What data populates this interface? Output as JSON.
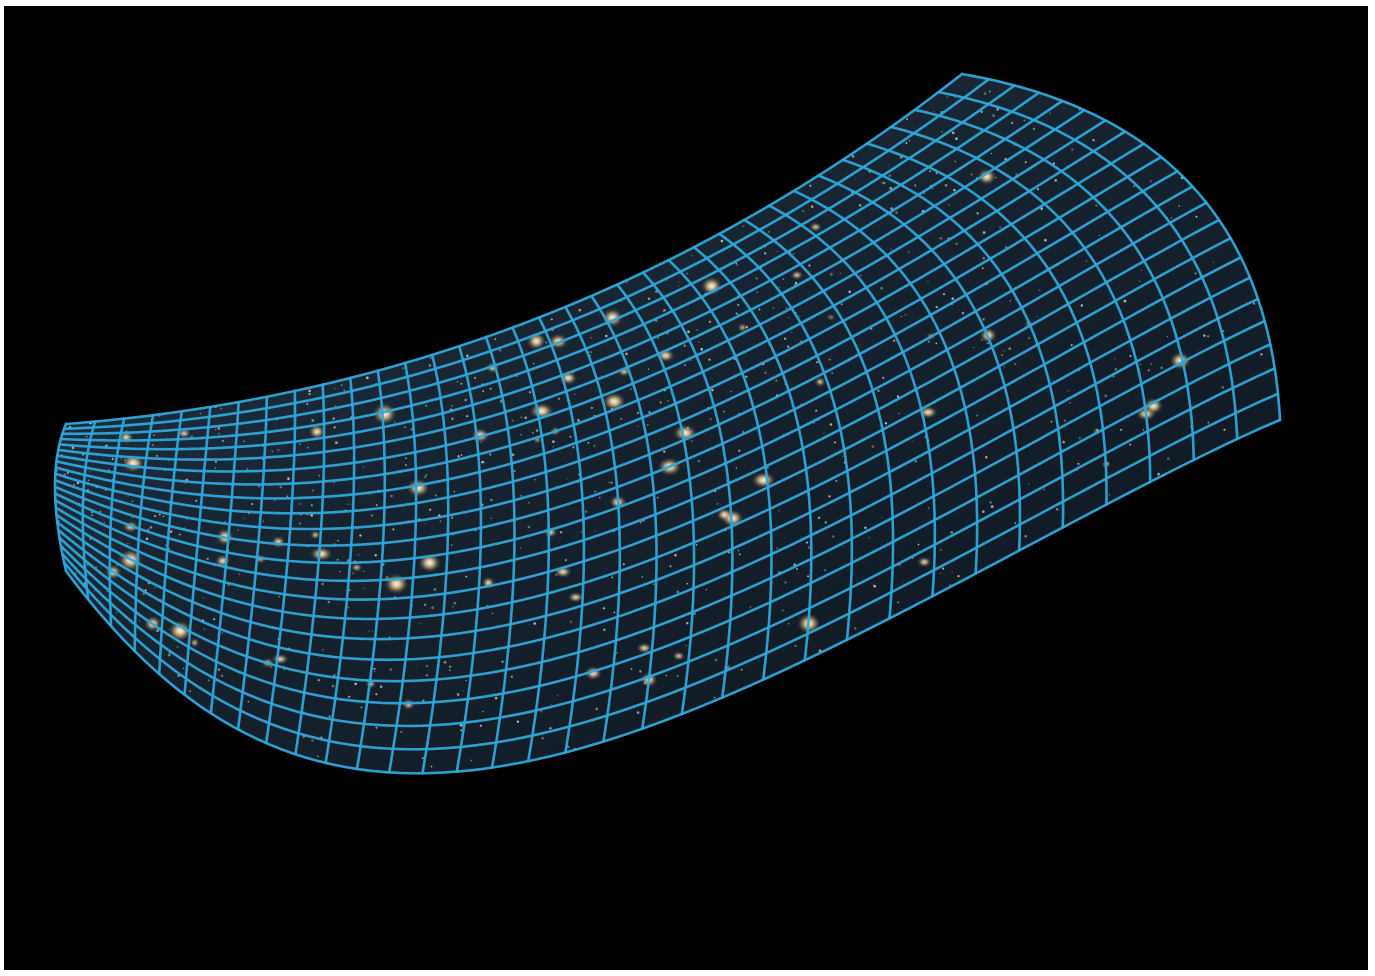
{
  "image": {
    "subject": "saddle-surface-grid",
    "background_color": "#000000",
    "border_color": "#ffffff",
    "grid_color": "#2fa6d8",
    "surface_tint": "#1b2c3c",
    "galaxy_color": "#f3d7a0",
    "icon": "saddle-spacetime-icon"
  }
}
